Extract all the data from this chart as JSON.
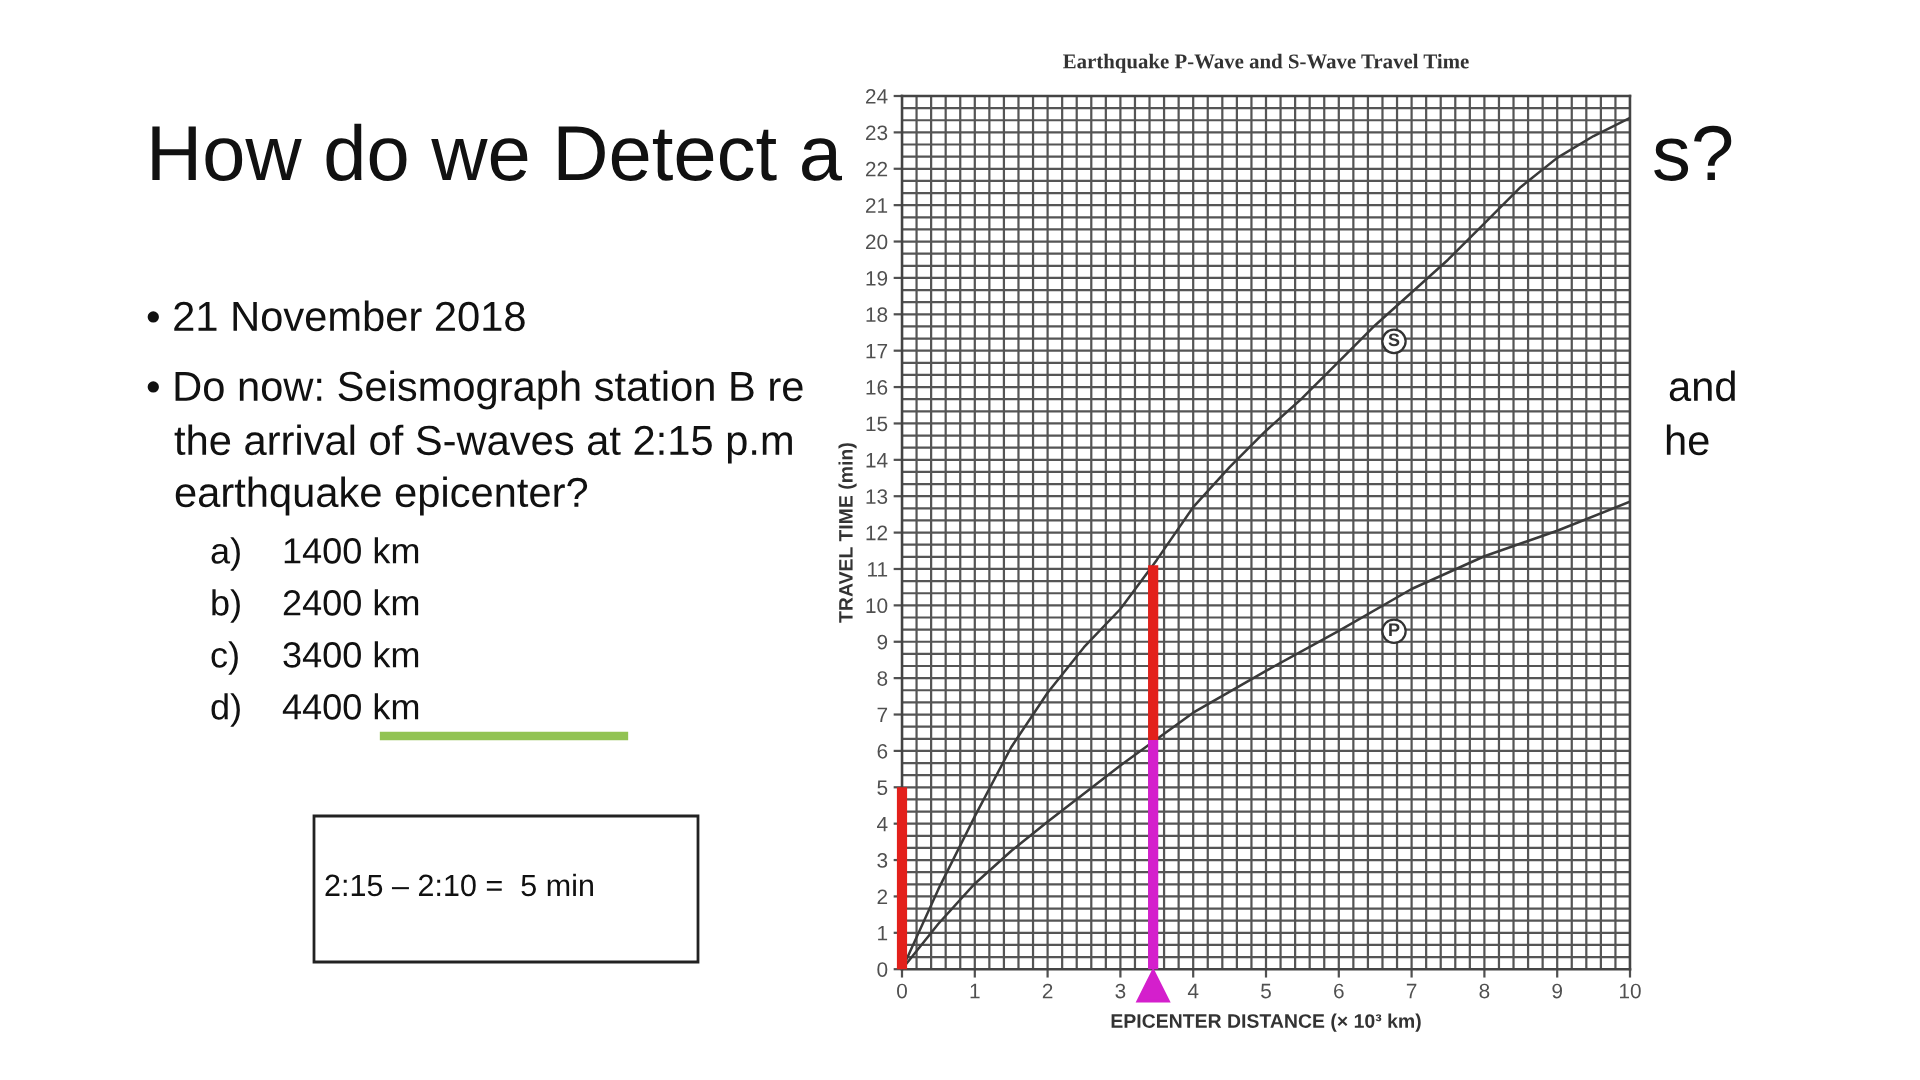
{
  "chart_data": {
    "type": "line",
    "title": "Earthquake P-Wave and S-Wave Travel Time",
    "xlabel": "EPICENTER DISTANCE (× 10³ km)",
    "ylabel": "TRAVEL TIME (min)",
    "xlim": [
      0,
      10
    ],
    "ylim": [
      0,
      24
    ],
    "xticks": [
      0,
      {
        "value": 0.2,
        "label": null
      },
      {
        "value": 0.4,
        "label": null
      },
      {
        "value": 0.6,
        "label": null
      },
      {
        "value": 0.8,
        "label": null
      },
      1,
      {
        "value": 1.2,
        "label": null
      },
      {
        "value": 1.4,
        "label": null
      },
      {
        "value": 1.6,
        "label": null
      },
      {
        "value": 1.8,
        "label": null
      },
      2,
      {
        "value": 2.2,
        "label": null
      },
      {
        "value": 2.4,
        "label": null
      },
      {
        "value": 2.6,
        "label": null
      },
      {
        "value": 2.8,
        "label": null
      },
      3,
      {
        "value": 3.2,
        "label": null
      },
      {
        "value": 3.4,
        "label": null
      },
      {
        "value": 3.6,
        "label": null
      },
      {
        "value": 3.8,
        "label": null
      },
      4,
      {
        "value": 4.2,
        "label": null
      },
      {
        "value": 4.4,
        "label": null
      },
      {
        "value": 4.6,
        "label": null
      },
      {
        "value": 4.8,
        "label": null
      },
      5,
      {
        "value": 5.2,
        "label": null
      },
      {
        "value": 5.4,
        "label": null
      },
      {
        "value": 5.6,
        "label": null
      },
      {
        "value": 5.8,
        "label": null
      },
      6,
      {
        "value": 6.2,
        "label": null
      },
      {
        "value": 6.4,
        "label": null
      },
      {
        "value": 6.6,
        "label": null
      },
      {
        "value": 6.8,
        "label": null
      },
      7,
      {
        "value": 7.2,
        "label": null
      },
      {
        "value": 7.4,
        "label": null
      },
      {
        "value": 7.6,
        "label": null
      },
      {
        "value": 7.8,
        "label": null
      },
      8,
      {
        "value": 8.2,
        "label": null
      },
      {
        "value": 8.4,
        "label": null
      },
      {
        "value": 8.6,
        "label": null
      },
      {
        "value": 8.8,
        "label": null
      },
      9,
      {
        "value": 9.2,
        "label": null
      },
      {
        "value": 9.4,
        "label": null
      },
      {
        "value": 9.6,
        "label": null
      },
      {
        "value": 9.8,
        "label": null
      },
      10
    ],
    "yticks": [
      0,
      {
        "value": 0.3333,
        "label": null
      },
      {
        "value": 0.6667,
        "label": null
      },
      1,
      {
        "value": 1.3333,
        "label": null
      },
      {
        "value": 1.6667,
        "label": null
      },
      2,
      {
        "value": 2.3333,
        "label": null
      },
      {
        "value": 2.6667,
        "label": null
      },
      3,
      {
        "value": 3.3333,
        "label": null
      },
      {
        "value": 3.6667,
        "label": null
      },
      4,
      {
        "value": 4.3333,
        "label": null
      },
      {
        "value": 4.6667,
        "label": null
      },
      5,
      {
        "value": 5.3333,
        "label": null
      },
      {
        "value": 5.6667,
        "label": null
      },
      6,
      {
        "value": 6.3333,
        "label": null
      },
      {
        "value": 6.6667,
        "label": null
      },
      7,
      {
        "value": 7.3333,
        "label": null
      },
      {
        "value": 7.6667,
        "label": null
      },
      8,
      {
        "value": 8.3333,
        "label": null
      },
      {
        "value": 8.6667,
        "label": null
      },
      9,
      {
        "value": 9.3333,
        "label": null
      },
      {
        "value": 9.6667,
        "label": null
      },
      10,
      {
        "value": 10.3333,
        "label": null
      },
      {
        "value": 10.6667,
        "label": null
      },
      11,
      {
        "value": 11.3333,
        "label": null
      },
      {
        "value": 11.6667,
        "label": null
      },
      12,
      {
        "value": 12.3333,
        "label": null
      },
      {
        "value": 12.6667,
        "label": null
      },
      13,
      {
        "value": 13.3333,
        "label": null
      },
      {
        "value": 13.6667,
        "label": null
      },
      14,
      {
        "value": 14.3333,
        "label": null
      },
      {
        "value": 14.6667,
        "label": null
      },
      15,
      {
        "value": 15.3333,
        "label": null
      },
      {
        "value": 15.6667,
        "label": null
      },
      16,
      {
        "value": 16.3333,
        "label": null
      },
      {
        "value": 16.6667,
        "label": null
      },
      17,
      {
        "value": 17.3333,
        "label": null
      },
      {
        "value": 17.6667,
        "label": null
      },
      18,
      {
        "value": 18.3333,
        "label": null
      },
      {
        "value": 18.6667,
        "label": null
      },
      19,
      {
        "value": 19.3333,
        "label": null
      },
      {
        "value": 19.6667,
        "label": null
      },
      20,
      {
        "value": 20.3333,
        "label": null
      },
      {
        "value": 20.6667,
        "label": null
      },
      21,
      {
        "value": 21.3333,
        "label": null
      },
      {
        "value": 21.6667,
        "label": null
      },
      22,
      {
        "value": 22.3333,
        "label": null
      },
      {
        "value": 22.6667,
        "label": null
      },
      23,
      {
        "value": 23.3333,
        "label": null
      },
      {
        "value": 23.6667,
        "label": null
      },
      24
    ],
    "grid": true,
    "series": [
      {
        "name": "S",
        "color": "#3a3a3a",
        "x": [
          0,
          0.5,
          1,
          1.5,
          2,
          2.5,
          3,
          3.5,
          4,
          4.5,
          5,
          5.5,
          6,
          6.5,
          7,
          7.5,
          8,
          8.5,
          9,
          9.5,
          10
        ],
        "values": [
          0,
          2.2,
          4.2,
          6.1,
          7.6,
          8.85,
          9.9,
          11.25,
          12.7,
          13.8,
          14.8,
          15.7,
          16.7,
          17.7,
          18.6,
          19.5,
          20.5,
          21.5,
          22.3,
          22.9,
          23.4
        ]
      },
      {
        "name": "P",
        "color": "#3a3a3a",
        "x": [
          0,
          0.5,
          1,
          1.5,
          2,
          3,
          4,
          5,
          6,
          7,
          8,
          9,
          10
        ],
        "values": [
          0,
          1.25,
          2.35,
          3.25,
          4.05,
          5.6,
          7.05,
          8.2,
          9.3,
          10.45,
          11.35,
          12.05,
          12.85
        ]
      },
      {
        "type": "bar",
        "color": "#e3201b",
        "x": [
          0,
          3.45
        ],
        "base": [
          0,
          6.3
        ],
        "values": [
          5,
          4.8
        ]
      },
      {
        "type": "bar",
        "color": "#d41fcc",
        "x": [
          3.45
        ],
        "base": [
          0
        ],
        "values": [
          6.3
        ],
        "marker": "triangle"
      }
    ],
    "annotations": [
      "How do we Detect a",
      "s?",
      "• 21 November 2018",
      "• Do now: Seismograph station B re",
      "the arrival of S-waves at 2:15 p.m",
      "earthquake epicenter?",
      "and",
      "he",
      "a)",
      "1400 km",
      "b)",
      "2400 km",
      "c)",
      "3400 km",
      "d)",
      "4400 km",
      "2:15 – 2:10 =  5 min"
    ]
  }
}
